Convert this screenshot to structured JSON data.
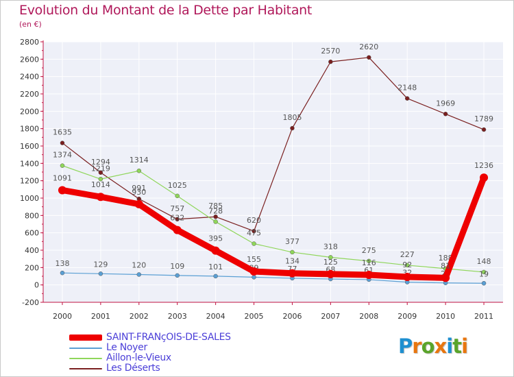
{
  "header": {
    "title": "Evolution du Montant de la Dette par Habitant",
    "subtitle": "(en €)"
  },
  "logo": {
    "text": "Proxiti",
    "letter_colors": [
      "#1e8fd0",
      "#e8760f",
      "#5aa42a",
      "#e8760f",
      "#1e8fd0",
      "#5aa42a",
      "#e8760f"
    ]
  },
  "chart_data": {
    "type": "line",
    "title": "Evolution du Montant de la Dette par Habitant",
    "subtitle": "(en €)",
    "xlabel": "",
    "ylabel": "",
    "x": [
      "2000",
      "2001",
      "2002",
      "2003",
      "2004",
      "2005",
      "2006",
      "2007",
      "2008",
      "2009",
      "2010",
      "2011"
    ],
    "ylim": [
      -200,
      2800
    ],
    "yticks": [
      "-200",
      "0",
      "200",
      "400",
      "600",
      "800",
      "1000",
      "1200",
      "1400",
      "1600",
      "1800",
      "2000",
      "2200",
      "2400",
      "2600",
      "2800"
    ],
    "grid": true,
    "legend_position": "bottom-left",
    "series": [
      {
        "name": "Les Déserts",
        "color": "#7a1f1f",
        "values": [
          1635,
          1294,
          991,
          757,
          785,
          620,
          1805,
          2570,
          2620,
          2148,
          1969,
          1789
        ]
      },
      {
        "name": "Aillon-le-Vieux",
        "color": "#8fd65a",
        "values": [
          1374,
          1219,
          1314,
          1025,
          728,
          475,
          377,
          318,
          275,
          227,
          188,
          148
        ]
      },
      {
        "name": "Le Noyer",
        "color": "#5a9fd4",
        "values": [
          138,
          129,
          120,
          109,
          101,
          89,
          77,
          68,
          61,
          32,
          23,
          19
        ]
      },
      {
        "name": "SAINT-FRANçOIS-DE-SALES",
        "color": "#ee0000",
        "values": [
          1091,
          1014,
          930,
          632,
          395,
          155,
          134,
          125,
          116,
          92,
          81,
          1236
        ]
      }
    ],
    "legend": [
      {
        "name": "SAINT-FRANçOIS-DE-SALES",
        "color": "#ee0000",
        "thick": true
      },
      {
        "name": "Le Noyer",
        "color": "#5a9fd4",
        "thick": false
      },
      {
        "name": "Aillon-le-Vieux",
        "color": "#8fd65a",
        "thick": false
      },
      {
        "name": "Les Déserts",
        "color": "#7a1f1f",
        "thick": false
      }
    ]
  }
}
